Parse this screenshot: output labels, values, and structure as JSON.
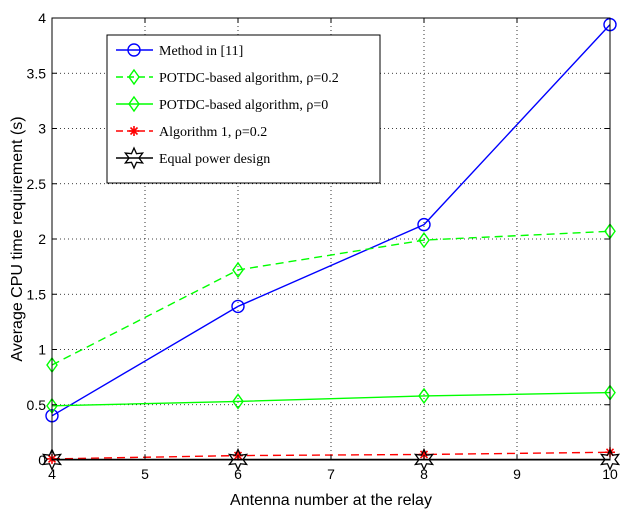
{
  "chart_data": {
    "type": "line",
    "xlabel": "Antenna number at the relay",
    "ylabel": "Average CPU time requirement (s)",
    "xlim": [
      4,
      10
    ],
    "ylim": [
      0,
      4
    ],
    "xticks": [
      "4",
      "5",
      "6",
      "7",
      "8",
      "9",
      "10"
    ],
    "yticks": [
      "0",
      "0.5",
      "1",
      "1.5",
      "2",
      "2.5",
      "3",
      "3.5",
      "4"
    ],
    "grid": true,
    "legend_position": "top-left",
    "x": [
      4,
      6,
      8,
      10
    ],
    "series": [
      {
        "name": "Method in [11]",
        "values": [
          0.4,
          1.39,
          2.13,
          3.94
        ],
        "color": "#0000ff",
        "dash": "solid",
        "marker": "circle"
      },
      {
        "name": "POTDC-based algorithm, ρ=0.2",
        "values": [
          0.86,
          1.72,
          1.99,
          2.07
        ],
        "color": "#00ff00",
        "dash": "dashed",
        "marker": "diamond"
      },
      {
        "name": "POTDC-based algorithm, ρ=0",
        "values": [
          0.49,
          0.53,
          0.58,
          0.61
        ],
        "color": "#00ff00",
        "dash": "solid",
        "marker": "diamond"
      },
      {
        "name": "Algorithm 1, ρ=0.2",
        "values": [
          0.01,
          0.04,
          0.05,
          0.07
        ],
        "color": "#ff0000",
        "dash": "dashed",
        "marker": "asterisk"
      },
      {
        "name": "Equal power design",
        "values": [
          0.005,
          0.005,
          0.005,
          0.005
        ],
        "color": "#000000",
        "dash": "solid",
        "marker": "star"
      }
    ]
  }
}
